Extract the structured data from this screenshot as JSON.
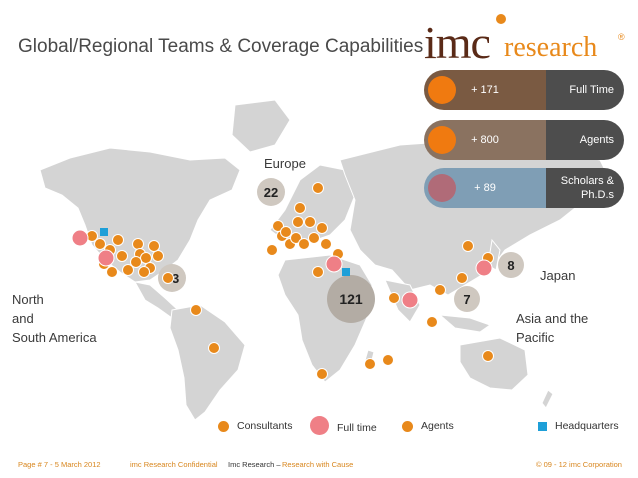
{
  "title": "Global/Regional Teams & Coverage Capabilities",
  "logo": {
    "imc": "imc",
    "research": "research",
    "reg": "®"
  },
  "colors": {
    "agent": "#e8891b",
    "fulltime": "#ef7f86",
    "hq": "#1e9fd8",
    "land": "#d3d3d3"
  },
  "stats": [
    {
      "value": "+ 171",
      "label": "Full Time",
      "bar_color": "#7a5a42",
      "knob_color": "#f07a10"
    },
    {
      "value": "+ 800",
      "label": "Agents",
      "bar_color": "#8a7260",
      "knob_color": "#f07a10"
    },
    {
      "value": "+ 89",
      "label": "Scholars & Ph.D.s",
      "bar_color": "#7f9eb5",
      "knob_color": "#b06b78"
    }
  ],
  "regions": {
    "americas": "North\nand\nSouth America",
    "europe": "Europe",
    "japan": "Japan",
    "asia": "Asia and the\nPacific"
  },
  "counts": {
    "americas": "13",
    "europe": "22",
    "middle": "121",
    "asia": "7",
    "japan": "8"
  },
  "legend": {
    "consultants": "Consultants",
    "fulltime": "Full time",
    "agents": "Agents",
    "hq": "Headquarters"
  },
  "footer": {
    "page": "Page # 7 - 5 March 2012",
    "confidential": "imc Research Confidential",
    "slogan_a": "Imc Research –",
    "slogan_b": "Research with Cause",
    "copyright": "© 09 - 12 imc Corporation"
  }
}
